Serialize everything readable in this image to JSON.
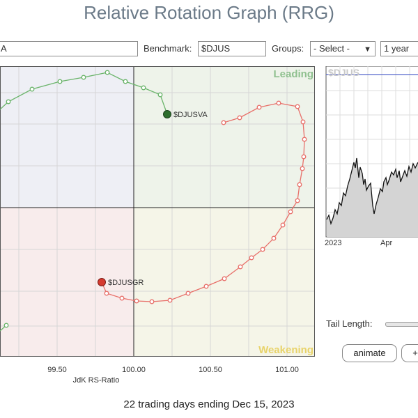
{
  "app_title": "Relative Rotation Graph (RRG)",
  "controls": {
    "symbols_value": "A",
    "benchmark_label": "Benchmark:",
    "benchmark_value": "$DJUS",
    "groups_label": "Groups:",
    "groups_selected": "- Select -",
    "period_selected": "1 year"
  },
  "quadrants": {
    "leading": "Leading",
    "weakening": "Weakening",
    "colors": {
      "leading_bg": "#eef3ea",
      "weakening_bg": "#f5f5e8",
      "lagging_bg": "#f8ecec",
      "improving_bg": "#eeeff5"
    }
  },
  "x_axis": {
    "label": "JdK RS-Ratio",
    "ticks": [
      "99.50",
      "100.00",
      "100.50",
      "101.00"
    ]
  },
  "series": [
    {
      "name": "$DJUSVA",
      "color": "#6ab46a",
      "head_color": "#2d6e2d"
    },
    {
      "name": "$DJUSGR",
      "color": "#e8706a",
      "head_color": "#d63a2f"
    }
  ],
  "side_chart": {
    "symbol": "$DJUS",
    "x_ticks": [
      "2023",
      "Apr"
    ]
  },
  "tail_length_label": "Tail Length:",
  "buttons": {
    "animate": "animate",
    "plus": "+"
  },
  "footer": "22 trading days ending Dec 15, 2023"
}
